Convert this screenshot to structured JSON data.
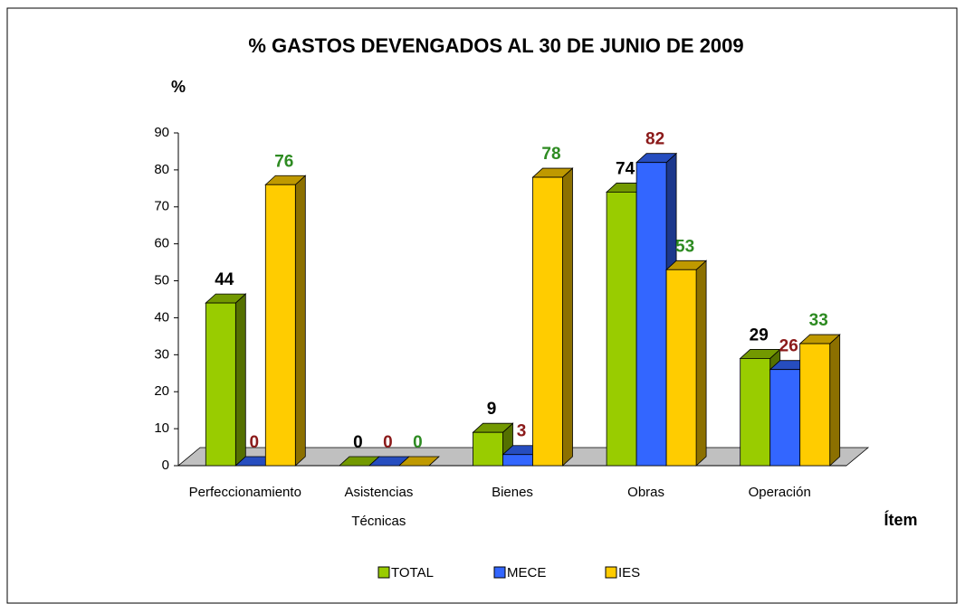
{
  "chart_data": {
    "type": "bar3d",
    "title": "% GASTOS DEVENGADOS AL 30 DE JUNIO DE 2009",
    "y_label": "%",
    "x_label": "Ítem",
    "categories": [
      "Perfeccionamiento",
      "Asistencias Técnicas",
      "Bienes",
      "Obras",
      "Operación"
    ],
    "series": [
      {
        "name": "TOTAL",
        "color": "#99cc00",
        "label_color": "#000000",
        "values": [
          44,
          0,
          9,
          74,
          29
        ]
      },
      {
        "name": "MECE",
        "color": "#3366ff",
        "label_color": "#8b1a1a",
        "values": [
          0,
          0,
          3,
          82,
          26
        ]
      },
      {
        "name": "IES",
        "color": "#ffcc00",
        "label_color": "#2e8b22",
        "values": [
          76,
          0,
          78,
          53,
          33
        ]
      }
    ],
    "ylim": [
      0,
      90
    ],
    "yticks": [
      0,
      10,
      20,
      30,
      40,
      50,
      60,
      70,
      80,
      90
    ]
  }
}
